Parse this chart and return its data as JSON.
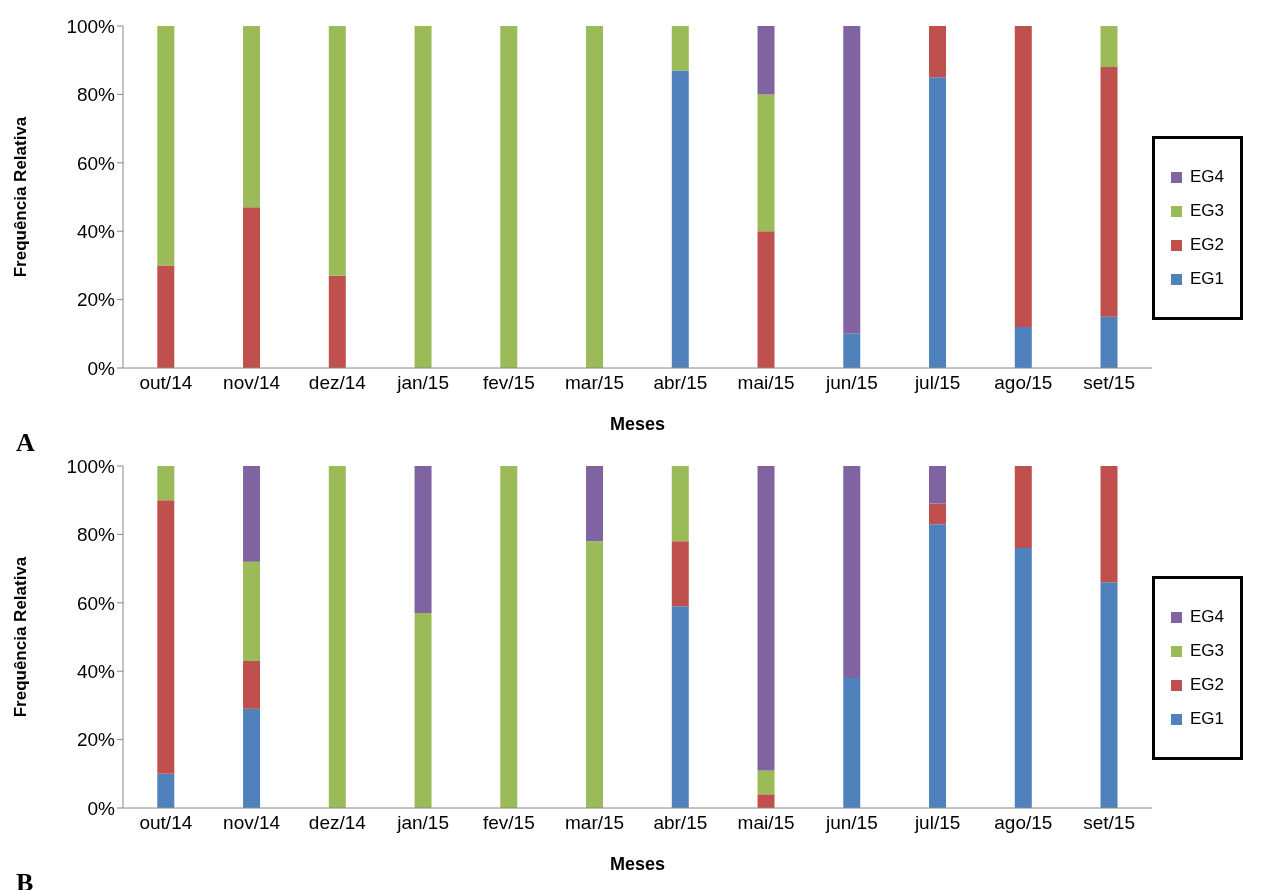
{
  "chart_data": [
    {
      "type": "bar",
      "stacked": true,
      "xlabel": "Meses",
      "ylabel": "Frequência Relativa",
      "annotations": [
        "A"
      ],
      "legend": "right",
      "grid": false,
      "categories": [
        "out/14",
        "nov/14",
        "dez/14",
        "jan/15",
        "fev/15",
        "mar/15",
        "abr/15",
        "mai/15",
        "jun/15",
        "jul/15",
        "ago/15",
        "set/15"
      ],
      "ylim": [
        0,
        100
      ],
      "yticks": [
        {
          "value": 0,
          "label": "0%"
        },
        {
          "value": 20,
          "label": "20%"
        },
        {
          "value": 40,
          "label": "40%"
        },
        {
          "value": 60,
          "label": "60%"
        },
        {
          "value": 80,
          "label": "80%"
        },
        {
          "value": 100,
          "label": "100%"
        }
      ],
      "series": [
        {
          "name": "EG1",
          "color": "#4f81bd",
          "values": [
            0,
            0,
            0,
            0,
            0,
            0,
            87,
            0,
            10,
            85,
            12,
            15
          ]
        },
        {
          "name": "EG2",
          "color": "#c0504d",
          "values": [
            30,
            47,
            27,
            0,
            0,
            0,
            0,
            40,
            0,
            15,
            88,
            73
          ]
        },
        {
          "name": "EG3",
          "color": "#9bbb59",
          "values": [
            70,
            53,
            73,
            100,
            100,
            100,
            13,
            40,
            0,
            0,
            0,
            12
          ]
        },
        {
          "name": "EG4",
          "color": "#8064a2",
          "values": [
            0,
            0,
            0,
            0,
            0,
            0,
            0,
            20,
            90,
            0,
            0,
            0
          ]
        }
      ]
    },
    {
      "type": "bar",
      "stacked": true,
      "xlabel": "Meses",
      "ylabel": "Frequência Relativa",
      "annotations": [
        "B"
      ],
      "legend": "right",
      "grid": false,
      "categories": [
        "out/14",
        "nov/14",
        "dez/14",
        "jan/15",
        "fev/15",
        "mar/15",
        "abr/15",
        "mai/15",
        "jun/15",
        "jul/15",
        "ago/15",
        "set/15"
      ],
      "ylim": [
        0,
        100
      ],
      "yticks": [
        {
          "value": 0,
          "label": "0%"
        },
        {
          "value": 20,
          "label": "20%"
        },
        {
          "value": 40,
          "label": "40%"
        },
        {
          "value": 60,
          "label": "60%"
        },
        {
          "value": 80,
          "label": "80%"
        },
        {
          "value": 100,
          "label": "100%"
        }
      ],
      "series": [
        {
          "name": "EG1",
          "color": "#4f81bd",
          "values": [
            10,
            29,
            0,
            0,
            0,
            0,
            59,
            0,
            38,
            83,
            76,
            66
          ]
        },
        {
          "name": "EG2",
          "color": "#c0504d",
          "values": [
            80,
            14,
            0,
            0,
            0,
            0,
            19,
            4,
            0,
            6,
            24,
            34
          ]
        },
        {
          "name": "EG3",
          "color": "#9bbb59",
          "values": [
            10,
            29,
            100,
            57,
            100,
            78,
            22,
            7,
            0,
            0,
            0,
            0
          ]
        },
        {
          "name": "EG4",
          "color": "#8064a2",
          "values": [
            0,
            28,
            0,
            43,
            0,
            22,
            0,
            89,
            62,
            11,
            0,
            0
          ]
        }
      ]
    }
  ]
}
